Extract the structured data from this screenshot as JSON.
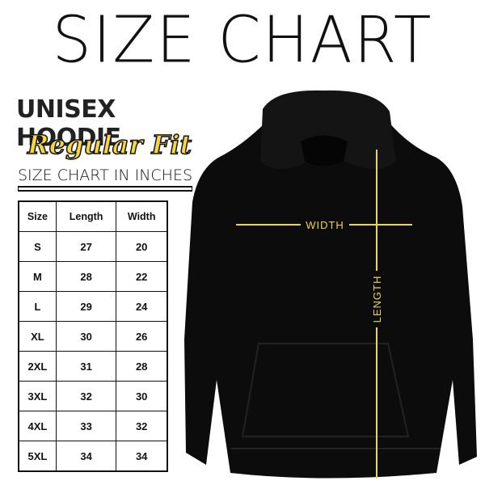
{
  "title": "SIZE CHART",
  "product": "UNISEX HOODIE",
  "fit": "Regular Fit",
  "table_caption": "SIZE CHART IN INCHES",
  "table": {
    "header": [
      "Size",
      "Length",
      "Width"
    ],
    "rows": [
      [
        "S",
        27,
        20
      ],
      [
        "M",
        28,
        22
      ],
      [
        "L",
        29,
        24
      ],
      [
        "XL",
        30,
        26
      ],
      [
        "2XL",
        31,
        28
      ],
      [
        "3XL",
        32,
        30
      ],
      [
        "4XL",
        33,
        32
      ],
      [
        "5XL",
        34,
        34
      ]
    ]
  },
  "measure_labels": {
    "width": "WIDTH",
    "length": "LENGTH"
  }
}
